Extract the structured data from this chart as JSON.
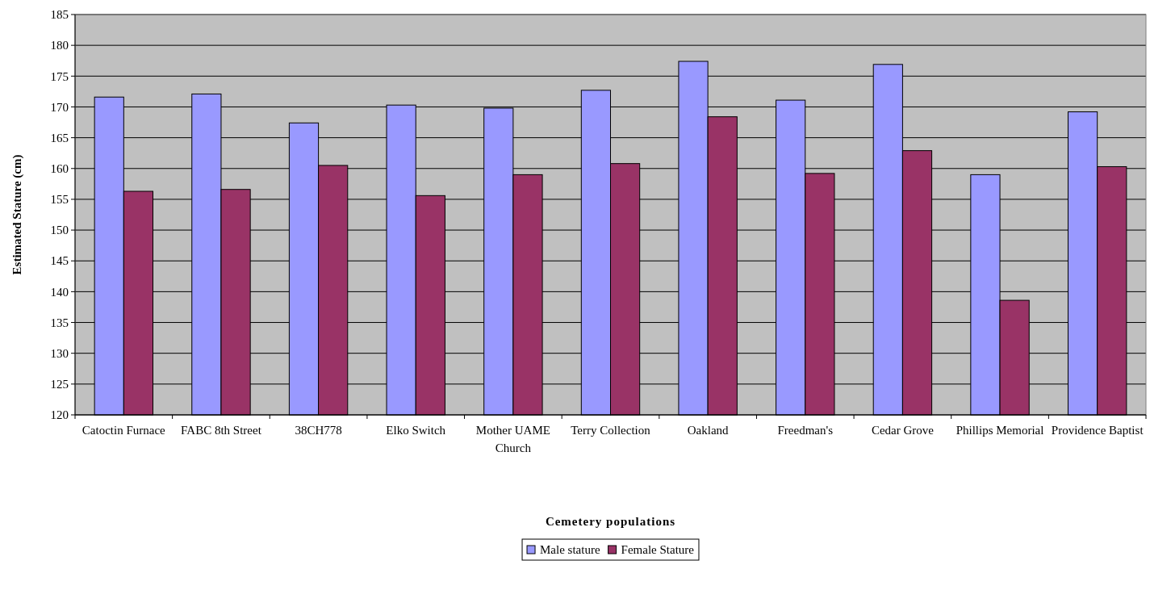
{
  "chart_data": {
    "type": "bar",
    "xlabel": "Cemetery populations",
    "ylabel": "Estimated Stature (cm)",
    "categories": [
      "Catoctin Furnace",
      "FABC 8th Street",
      "38CH778",
      "Elko Switch",
      "Mother UAME Church",
      "Terry Collection",
      "Oakland",
      "Freedman's",
      "Cedar Grove",
      "Phillips Memorial",
      "Providence Baptist"
    ],
    "series": [
      {
        "name": "Male stature",
        "color": "#9999ff",
        "values": [
          171.6,
          172.1,
          167.4,
          170.3,
          169.8,
          172.7,
          177.4,
          171.1,
          176.9,
          159,
          169.2
        ]
      },
      {
        "name": "Female Stature",
        "color": "#993366",
        "values": [
          156.3,
          156.6,
          160.5,
          155.6,
          159,
          160.8,
          168.4,
          159.2,
          162.9,
          138.6,
          160.3
        ]
      }
    ],
    "ylim": [
      120,
      185
    ],
    "yticks": [
      120,
      125,
      130,
      135,
      140,
      145,
      150,
      155,
      160,
      165,
      170,
      175,
      180,
      185
    ],
    "grid": "y",
    "legend": "bottom"
  }
}
